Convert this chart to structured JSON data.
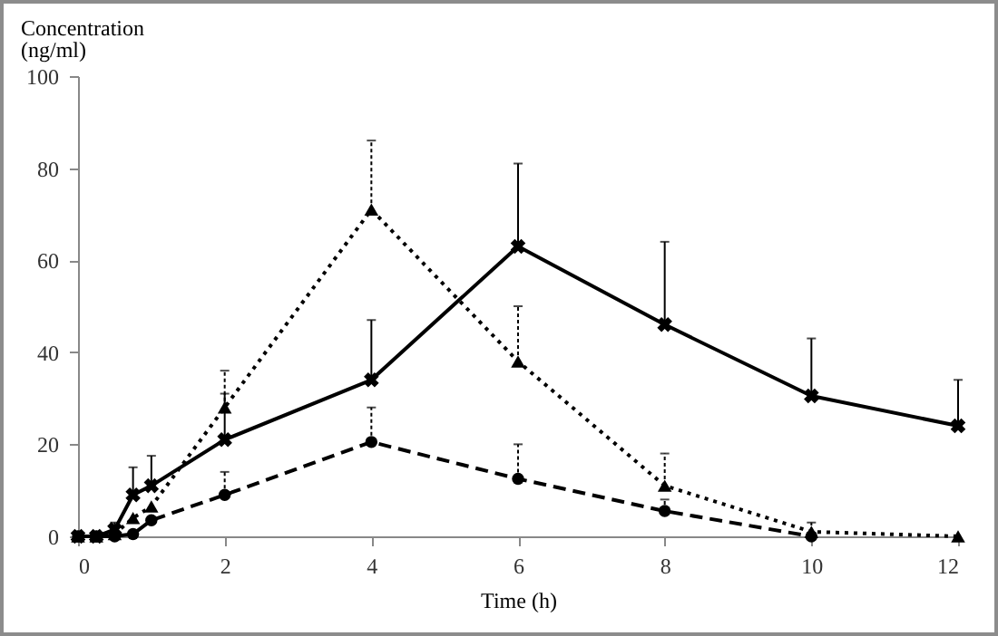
{
  "chart_data": {
    "type": "line",
    "xlabel": "Time (h)",
    "ylabel": "Concentration (ng/ml)",
    "x": [
      0,
      0.25,
      0.5,
      0.75,
      1,
      2,
      4,
      6,
      8,
      10,
      12
    ],
    "xlim": [
      0,
      12
    ],
    "xticks": [
      0,
      2,
      4,
      6,
      8,
      10,
      12
    ],
    "ylim": [
      0,
      100
    ],
    "yticks": [
      0,
      20,
      40,
      60,
      80,
      100
    ],
    "grid": false,
    "series": [
      {
        "color": "#000000",
        "marker": "cross",
        "line_style": "solid",
        "values": [
          0,
          0,
          1.5,
          9,
          11,
          21,
          34,
          63,
          46,
          30.5,
          24
        ],
        "errors": [
          null,
          null,
          [
            1.5,
            3
          ],
          [
            9,
            15
          ],
          [
            11,
            17.5
          ],
          [
            21,
            31
          ],
          [
            34,
            47
          ],
          [
            63,
            81
          ],
          [
            46,
            64
          ],
          [
            30.5,
            43
          ],
          [
            24,
            34
          ]
        ]
      },
      {
        "color": "#000000",
        "marker": "triangle",
        "line_style": "dotted",
        "values": [
          0,
          0,
          0.5,
          4,
          6.5,
          28,
          71,
          38,
          11,
          1,
          0
        ],
        "errors": [
          null,
          null,
          null,
          null,
          null,
          [
            28,
            36
          ],
          [
            71,
            86
          ],
          [
            38,
            50
          ],
          [
            11,
            18
          ],
          [
            1,
            3
          ],
          null
        ]
      },
      {
        "color": "#000000",
        "marker": "circle",
        "line_style": "dashed",
        "values": [
          0,
          0,
          0,
          0.5,
          3.5,
          9,
          20.5,
          12.5,
          5.5,
          0,
          null
        ],
        "errors": [
          null,
          null,
          null,
          null,
          null,
          [
            9,
            14
          ],
          [
            20.5,
            28
          ],
          [
            12.5,
            20
          ],
          [
            5.5,
            8
          ],
          null,
          null
        ]
      }
    ]
  }
}
